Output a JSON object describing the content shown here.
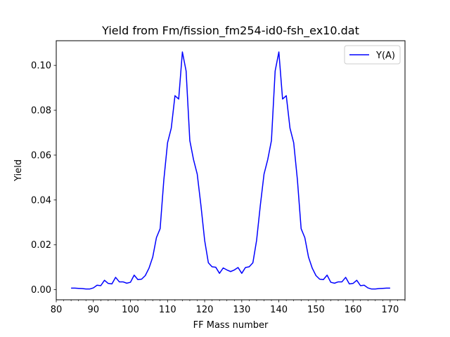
{
  "chart_data": {
    "type": "line",
    "title": "Yield from  Fm/fission_fm254-id0-fsh_ex10.dat",
    "xlabel": "FF Mass number",
    "ylabel": "Yield",
    "xlim": [
      80,
      174
    ],
    "ylim": [
      -0.0045,
      0.111
    ],
    "xticks": [
      80,
      90,
      100,
      110,
      120,
      130,
      140,
      150,
      160,
      170
    ],
    "xtick_labels": [
      "80",
      "90",
      "100",
      "110",
      "120",
      "130",
      "140",
      "150",
      "160",
      "170"
    ],
    "xminor_step": 2,
    "yticks": [
      0.0,
      0.02,
      0.04,
      0.06,
      0.08,
      0.1
    ],
    "ytick_labels": [
      "0.00",
      "0.02",
      "0.04",
      "0.06",
      "0.08",
      "0.10"
    ],
    "grid": false,
    "legend_position": "top-right",
    "series": [
      {
        "name": "Y(A)",
        "color": "#0000ff",
        "x": [
          84,
          85,
          86,
          87,
          88,
          89,
          90,
          91,
          92,
          93,
          94,
          95,
          96,
          97,
          98,
          99,
          100,
          101,
          102,
          103,
          104,
          105,
          106,
          107,
          108,
          109,
          110,
          111,
          112,
          113,
          114,
          115,
          116,
          117,
          118,
          119,
          120,
          121,
          122,
          123,
          124,
          125,
          126,
          127,
          128,
          129,
          130,
          131,
          132,
          133,
          134,
          135,
          136,
          137,
          138,
          139,
          140,
          141,
          142,
          143,
          144,
          145,
          146,
          147,
          148,
          149,
          150,
          151,
          152,
          153,
          154,
          155,
          156,
          157,
          158,
          159,
          160,
          161,
          162,
          163,
          164,
          165,
          166,
          167,
          168,
          169,
          170
        ],
        "y": [
          0.0007,
          0.0007,
          0.0006,
          0.0005,
          0.0003,
          0.0003,
          0.0008,
          0.002,
          0.0018,
          0.0042,
          0.0028,
          0.0026,
          0.0055,
          0.0035,
          0.0035,
          0.0029,
          0.0033,
          0.0065,
          0.0045,
          0.0047,
          0.0063,
          0.0096,
          0.0145,
          0.0232,
          0.0272,
          0.049,
          0.0655,
          0.072,
          0.0865,
          0.085,
          0.106,
          0.0975,
          0.0665,
          0.058,
          0.0515,
          0.0375,
          0.022,
          0.012,
          0.0102,
          0.01,
          0.0073,
          0.0097,
          0.0088,
          0.0081,
          0.0088,
          0.0099,
          0.0073,
          0.0099,
          0.0102,
          0.012,
          0.022,
          0.0375,
          0.0515,
          0.058,
          0.0665,
          0.0975,
          0.106,
          0.085,
          0.0865,
          0.072,
          0.0655,
          0.049,
          0.0272,
          0.0232,
          0.0145,
          0.0096,
          0.0063,
          0.0047,
          0.0045,
          0.0065,
          0.0033,
          0.0029,
          0.0035,
          0.0035,
          0.0055,
          0.0026,
          0.0028,
          0.0042,
          0.0018,
          0.002,
          0.0008,
          0.0003,
          0.0003,
          0.0005,
          0.0006,
          0.0007,
          0.0007
        ]
      }
    ]
  }
}
